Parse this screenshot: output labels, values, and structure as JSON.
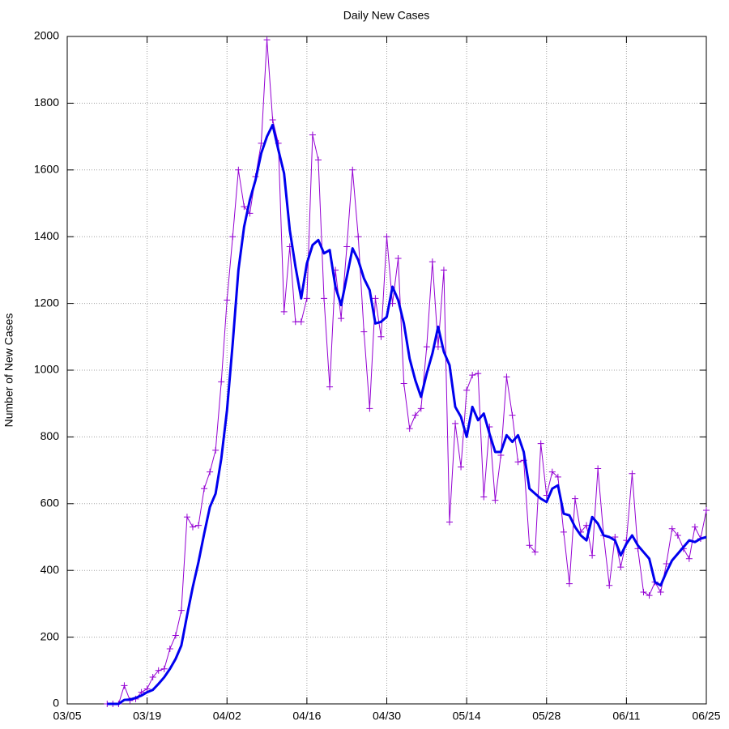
{
  "chart_data": {
    "type": "line",
    "title": "Daily New Cases",
    "y_label": "Number of New Cases",
    "categories": [
      "03/05",
      null,
      null,
      null,
      null,
      null,
      null,
      null,
      null,
      null,
      null,
      null,
      null,
      null,
      "03/19",
      null,
      null,
      null,
      null,
      null,
      null,
      null,
      null,
      null,
      null,
      null,
      null,
      null,
      "04/02",
      null,
      null,
      null,
      null,
      null,
      null,
      null,
      null,
      null,
      null,
      null,
      null,
      null,
      "04/16",
      null,
      null,
      null,
      null,
      null,
      null,
      null,
      null,
      null,
      null,
      null,
      null,
      null,
      "04/30",
      null,
      null,
      null,
      null,
      null,
      null,
      null,
      null,
      null,
      null,
      null,
      null,
      null,
      "05/14",
      null,
      null,
      null,
      null,
      null,
      null,
      null,
      null,
      null,
      null,
      null,
      null,
      null,
      "05/28",
      null,
      null,
      null,
      null,
      null,
      null,
      null,
      null,
      null,
      null,
      null,
      null,
      null,
      "06/11",
      null,
      null,
      null,
      null,
      null,
      null,
      null,
      null,
      null,
      null,
      null,
      null,
      null,
      "06/25"
    ],
    "series": [
      {
        "color": "#9400d3",
        "line_width": 1,
        "marker": "+",
        "values": [
          null,
          null,
          null,
          null,
          null,
          null,
          null,
          0,
          0,
          0,
          55,
          10,
          15,
          35,
          45,
          80,
          100,
          105,
          165,
          205,
          280,
          560,
          530,
          535,
          645,
          695,
          760,
          965,
          1210,
          1400,
          1600,
          1490,
          1470,
          1580,
          1680,
          1990,
          1750,
          1680,
          1175,
          1370,
          1145,
          1145,
          1215,
          1705,
          1630,
          1215,
          950,
          1300,
          1155,
          1370,
          1600,
          1400,
          1115,
          885,
          1215,
          1100,
          1400,
          1200,
          1335,
          960,
          825,
          865,
          885,
          1070,
          1325,
          1070,
          1300,
          545,
          840,
          710,
          940,
          985,
          990,
          620,
          830,
          610,
          745,
          980,
          865,
          725,
          730,
          475,
          455,
          780,
          625,
          695,
          680,
          515,
          360,
          615,
          515,
          535,
          445,
          705,
          505,
          355,
          500,
          410,
          490,
          690,
          465,
          335,
          325,
          365,
          335,
          420,
          525,
          505,
          465,
          435,
          530,
          495,
          580
        ]
      },
      {
        "color": "#0000ee",
        "line_width": 3,
        "values": [
          null,
          null,
          null,
          null,
          null,
          null,
          null,
          0,
          0,
          0,
          12,
          13,
          18,
          25,
          35,
          42,
          60,
          80,
          105,
          135,
          175,
          265,
          350,
          425,
          510,
          590,
          630,
          735,
          880,
          1080,
          1300,
          1430,
          1510,
          1570,
          1650,
          1700,
          1735,
          1660,
          1590,
          1420,
          1310,
          1215,
          1320,
          1375,
          1390,
          1350,
          1360,
          1250,
          1195,
          1280,
          1365,
          1330,
          1275,
          1240,
          1140,
          1145,
          1160,
          1250,
          1210,
          1140,
          1035,
          970,
          920,
          990,
          1050,
          1130,
          1055,
          1015,
          890,
          860,
          800,
          890,
          850,
          870,
          810,
          755,
          755,
          805,
          785,
          805,
          755,
          645,
          630,
          615,
          605,
          645,
          655,
          570,
          565,
          530,
          505,
          490,
          560,
          540,
          505,
          500,
          490,
          445,
          480,
          505,
          475,
          455,
          435,
          365,
          355,
          395,
          430,
          450,
          470,
          490,
          485,
          495,
          500
        ]
      }
    ],
    "ylim": [
      0,
      2000
    ],
    "yticks": [
      0,
      200,
      400,
      600,
      800,
      1000,
      1200,
      1400,
      1600,
      1800,
      2000
    ],
    "grid": true
  }
}
